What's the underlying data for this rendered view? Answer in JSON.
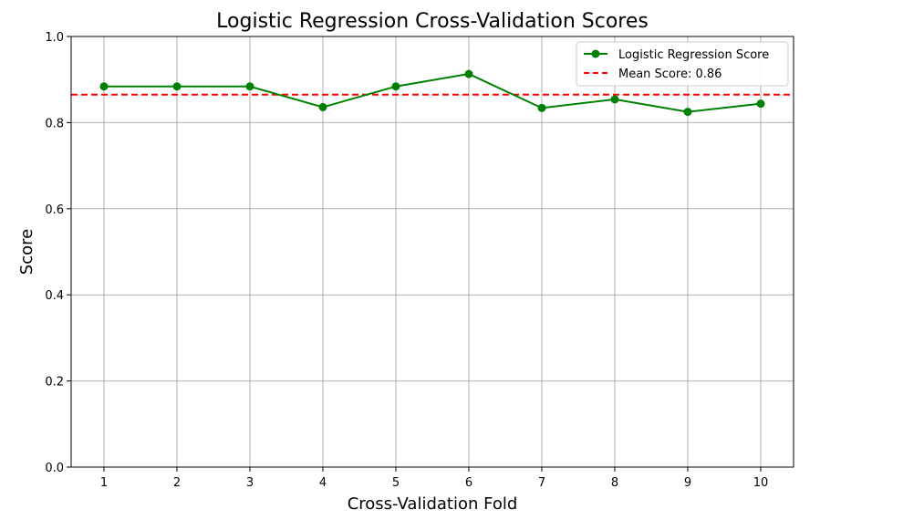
{
  "chart_data": {
    "type": "line",
    "title": "Logistic Regression Cross-Validation Scores",
    "xlabel": "Cross-Validation Fold",
    "ylabel": "Score",
    "x": [
      1,
      2,
      3,
      4,
      5,
      6,
      7,
      8,
      9,
      10
    ],
    "xlim": [
      0.55,
      10.45
    ],
    "ylim": [
      0.0,
      1.0
    ],
    "yticks": [
      0.0,
      0.2,
      0.4,
      0.6,
      0.8,
      1.0
    ],
    "ytick_labels": [
      "0.0",
      "0.2",
      "0.4",
      "0.6",
      "0.8",
      "1.0"
    ],
    "xtick_labels": [
      "1",
      "2",
      "3",
      "4",
      "5",
      "6",
      "7",
      "8",
      "9",
      "10"
    ],
    "grid": true,
    "legend_position": "top-right",
    "series": [
      {
        "name": "Logistic Regression Score",
        "values": [
          0.884,
          0.884,
          0.884,
          0.836,
          0.884,
          0.913,
          0.834,
          0.854,
          0.825,
          0.844
        ],
        "color": "#008000",
        "marker": "circle",
        "line_style": "solid"
      }
    ],
    "reference_lines": [
      {
        "name": "Mean Score: 0.86",
        "value": 0.865,
        "color": "#ff0000",
        "line_style": "dashed"
      }
    ]
  }
}
